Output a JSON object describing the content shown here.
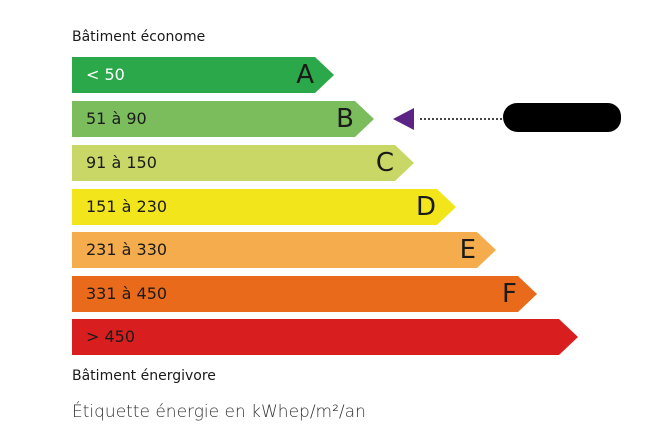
{
  "top_label": "Bâtiment économe",
  "bottom_label": "Bâtiment énergivore",
  "unit_label": "Étiquette énergie en kWhep/m²/an",
  "classes": [
    {
      "range": "< 50",
      "letter": "A",
      "color": "#2aa84a",
      "text_color": "#ffffff"
    },
    {
      "range": "51 à 90",
      "letter": "B",
      "color": "#7bbd5d",
      "text_color": "#1a1a1a"
    },
    {
      "range": "91 à 150",
      "letter": "C",
      "color": "#c8d765",
      "text_color": "#1a1a1a"
    },
    {
      "range": "151 à 230",
      "letter": "D",
      "color": "#f2e51c",
      "text_color": "#1a1a1a"
    },
    {
      "range": "231 à 330",
      "letter": "E",
      "color": "#f5ac4c",
      "text_color": "#1a1a1a"
    },
    {
      "range": "331 à 450",
      "letter": "F",
      "color": "#ea6a1c",
      "text_color": "#1a1a1a"
    },
    {
      "range": "> 450",
      "letter": "",
      "color": "#d91e20",
      "text_color": "#1a1a1a"
    }
  ],
  "indicator": {
    "class": "B",
    "color": "#5b2383",
    "value_redacted": true
  }
}
